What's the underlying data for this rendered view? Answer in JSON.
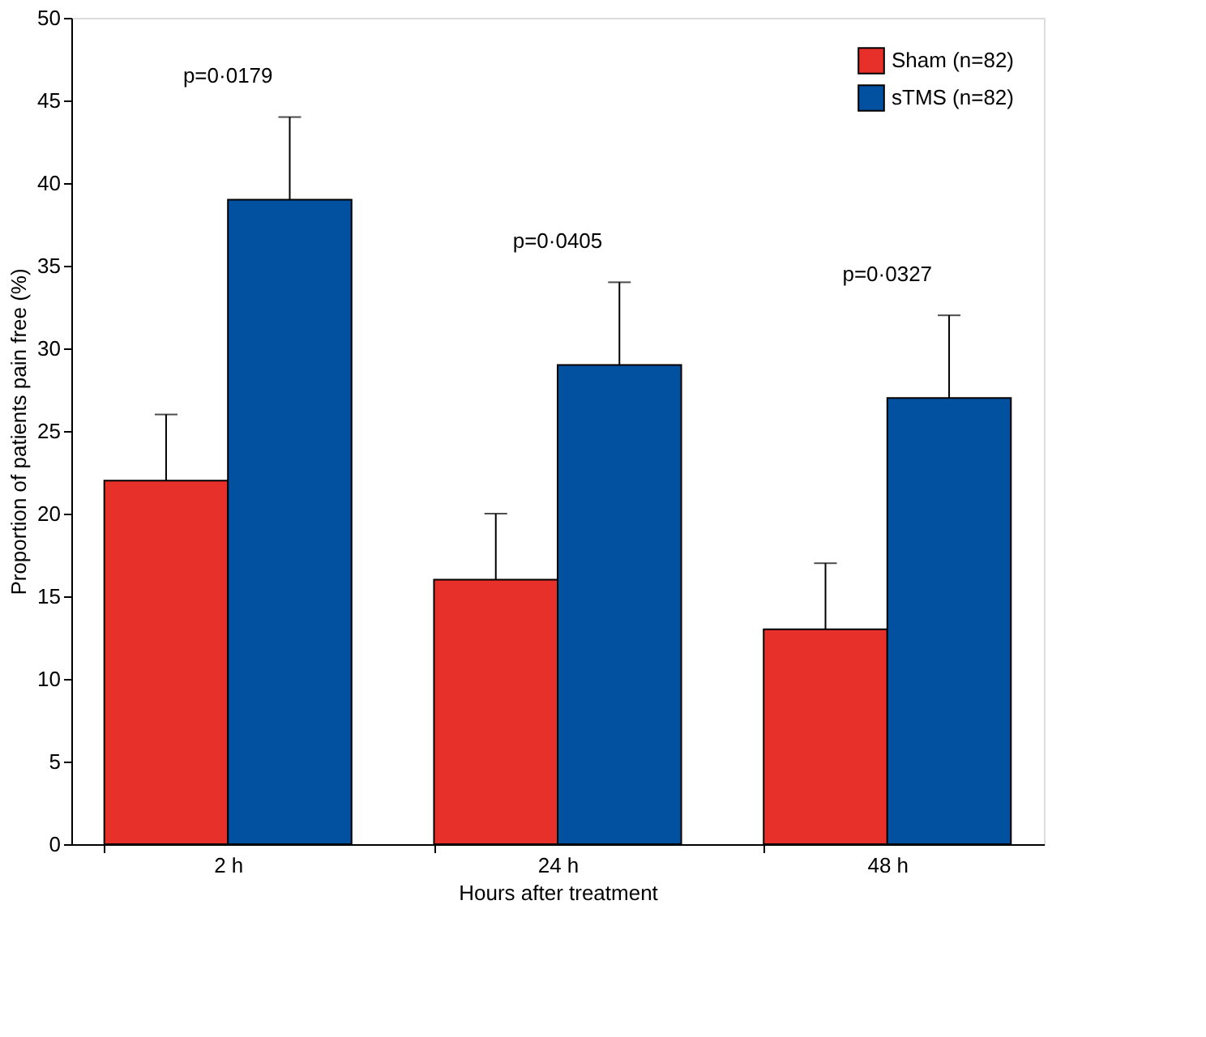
{
  "chart_data": {
    "type": "bar",
    "xlabel": "Hours after treatment",
    "ylabel": "Proportion of patients pain free (%)",
    "categories": [
      "2 h",
      "24 h",
      "48 h"
    ],
    "series": [
      {
        "name": "Sham (n=82)",
        "color": "#e8302a",
        "values": [
          22,
          16,
          13
        ],
        "errors": [
          [
            22,
            26
          ],
          [
            16,
            20
          ],
          [
            13,
            17
          ]
        ]
      },
      {
        "name": "sTMS (n=82)",
        "color": "#0250a0",
        "values": [
          39,
          29,
          27
        ],
        "errors": [
          [
            39,
            44
          ],
          [
            29,
            34
          ],
          [
            27,
            32
          ]
        ]
      }
    ],
    "annotations": [
      "p=0·0179",
      "p=0·0405",
      "p=0·0327"
    ],
    "ylim": [
      0,
      50
    ],
    "yticks": [
      0,
      5,
      10,
      15,
      20,
      25,
      30,
      35,
      40,
      45,
      50
    ],
    "grid": false,
    "legend": "top right"
  }
}
